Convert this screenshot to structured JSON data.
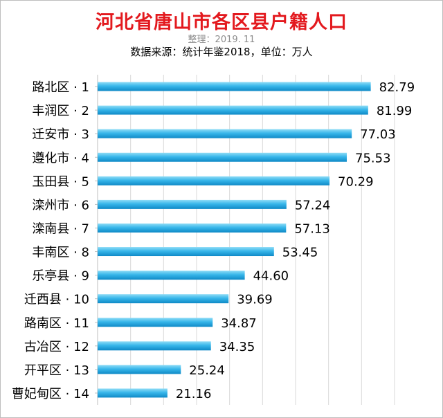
{
  "chart_data": {
    "type": "bar",
    "orientation": "horizontal",
    "title": "河北省唐山市各区县户籍人口",
    "subtitle": "整理：2019. 11",
    "source": "数据来源：统计年鉴2018，单位：万人",
    "categories": [
      "路北区 · 1",
      "丰润区 · 2",
      "迁安市 · 3",
      "遵化市 · 4",
      "玉田县 · 5",
      "滦州市 · 6",
      "滦南县 · 7",
      "丰南区 · 8",
      "乐亭县 · 9",
      "迁西县 · 10",
      "路南区 · 11",
      "古冶区 · 12",
      "开平区 · 13",
      "曹妃甸区 · 14"
    ],
    "values": [
      82.79,
      81.99,
      77.03,
      75.53,
      70.29,
      57.24,
      57.13,
      53.45,
      44.6,
      39.69,
      34.87,
      34.35,
      25.24,
      21.16
    ],
    "value_labels": [
      "82.79",
      "81.99",
      "77.03",
      "75.53",
      "70.29",
      "57.24",
      "57.13",
      "53.45",
      "44.60",
      "39.69",
      "34.87",
      "34.35",
      "25.24",
      "21.16"
    ],
    "xlim": [
      0,
      90
    ],
    "grid": true,
    "legend": "none",
    "colors": {
      "bar_light": "#8fdcf6",
      "bar_mid": "#37b6ea",
      "bar_dark": "#0f89c6",
      "title": "#e3191e",
      "grid": "#d9d9d9"
    }
  }
}
